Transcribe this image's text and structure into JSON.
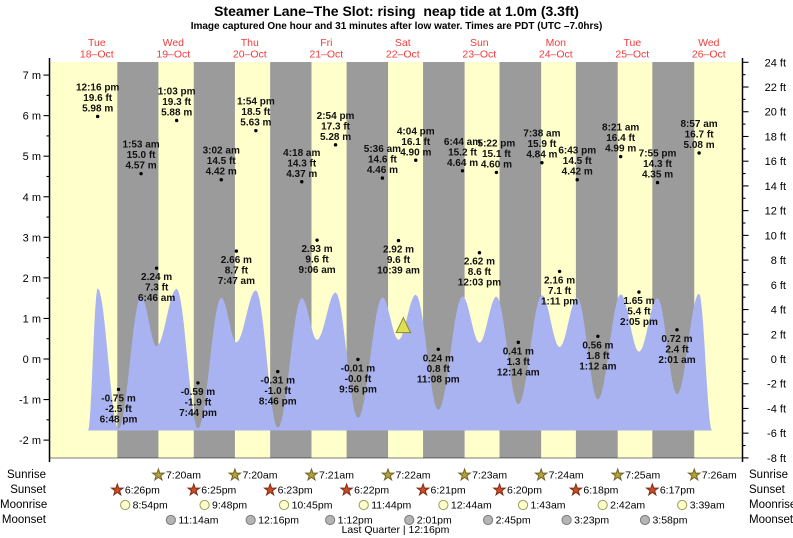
{
  "title": "Steamer Lane–The Slot: rising  neap tide at 1.0m (3.3ft)",
  "subtitle": "Image captured One hour and 31 minutes after low water. Times are PDT (UTC –7.0hrs)",
  "footer": "Last Quarter | 12:16pm",
  "side_labels": [
    "Sunrise",
    "Sunset",
    "Moonrise",
    "Moonset"
  ],
  "colors": {
    "day_band": "#ffffcc",
    "night_band": "#9b9b9b",
    "tide_fill": "#a9b3f1",
    "day_label_red": "#f23c3c",
    "axis_black": "#000000",
    "sunrise_star": "#b5a135",
    "sunrise_star_edge": "#6f652a",
    "sunset_star": "#cc4b28",
    "sunset_star_edge": "#7d2d12",
    "moonrise_circle": "#ffffd2",
    "moonrise_circle_edge": "#9d9d4e",
    "moonset_circle": "#b4b4b4",
    "moonset_circle_edge": "#7a7a7a",
    "marker_fill": "#dfdf55",
    "marker_edge": "#8b8b25"
  },
  "chart_data": {
    "type": "area",
    "title": "Steamer Lane–The Slot tide curve",
    "ylabel_left": "m",
    "ylabel_right": "ft",
    "y_left": {
      "unit": "m",
      "min": -2,
      "max": 7,
      "step": 1
    },
    "y_right": {
      "unit": "ft",
      "min": -8,
      "max": 24,
      "step": 2
    },
    "days": [
      {
        "name": "Tue",
        "date": "18–Oct"
      },
      {
        "name": "Wed",
        "date": "19–Oct"
      },
      {
        "name": "Thu",
        "date": "20–Oct"
      },
      {
        "name": "Fri",
        "date": "21–Oct"
      },
      {
        "name": "Sat",
        "date": "22–Oct"
      },
      {
        "name": "Sun",
        "date": "23–Oct"
      },
      {
        "name": "Mon",
        "date": "24–Oct"
      },
      {
        "name": "Tue",
        "date": "25–Oct"
      },
      {
        "name": "Wed",
        "date": "26–Oct"
      }
    ],
    "tide_events": [
      {
        "day": 0,
        "time": "12:16 pm",
        "ft": "19.6 ft",
        "m": "5.98 m",
        "type": "high"
      },
      {
        "day": 0,
        "time": "6:48 pm",
        "ft": "-2.5 ft",
        "m": "-0.75 m",
        "type": "low"
      },
      {
        "day": 1,
        "time": "1:53 am",
        "ft": "15.0 ft",
        "m": "4.57 m",
        "type": "high"
      },
      {
        "day": 1,
        "time": "6:46 am",
        "ft": "7.3 ft",
        "m": "2.24 m",
        "type": "low"
      },
      {
        "day": 1,
        "time": "1:03 pm",
        "ft": "19.3 ft",
        "m": "5.88 m",
        "type": "high"
      },
      {
        "day": 1,
        "time": "7:44 pm",
        "ft": "-1.9 ft",
        "m": "-0.59 m",
        "type": "low"
      },
      {
        "day": 2,
        "time": "3:02 am",
        "ft": "14.5 ft",
        "m": "4.42 m",
        "type": "high"
      },
      {
        "day": 2,
        "time": "7:47 am",
        "ft": "8.7 ft",
        "m": "2.66 m",
        "type": "low"
      },
      {
        "day": 2,
        "time": "1:54 pm",
        "ft": "18.5 ft",
        "m": "5.63 m",
        "type": "high"
      },
      {
        "day": 2,
        "time": "8:46 pm",
        "ft": "-1.0 ft",
        "m": "-0.31 m",
        "type": "low"
      },
      {
        "day": 3,
        "time": "4:18 am",
        "ft": "14.3 ft",
        "m": "4.37 m",
        "type": "high"
      },
      {
        "day": 3,
        "time": "9:06 am",
        "ft": "9.6 ft",
        "m": "2.93 m",
        "type": "low"
      },
      {
        "day": 3,
        "time": "2:54 pm",
        "ft": "17.3 ft",
        "m": "5.28 m",
        "type": "high"
      },
      {
        "day": 3,
        "time": "9:56 pm",
        "ft": "-0.0 ft",
        "m": "-0.01 m",
        "type": "low"
      },
      {
        "day": 4,
        "time": "5:36 am",
        "ft": "14.6 ft",
        "m": "4.46 m",
        "type": "high"
      },
      {
        "day": 4,
        "time": "10:39 am",
        "ft": "9.6 ft",
        "m": "2.92 m",
        "type": "low"
      },
      {
        "day": 4,
        "time": "4:04 pm",
        "ft": "16.1 ft",
        "m": "4.90 m",
        "type": "high"
      },
      {
        "day": 4,
        "time": "11:08 pm",
        "ft": "0.8 ft",
        "m": "0.24 m",
        "type": "low"
      },
      {
        "day": 5,
        "time": "6:44 am",
        "ft": "15.2 ft",
        "m": "4.64 m",
        "type": "high"
      },
      {
        "day": 5,
        "time": "12:03 pm",
        "ft": "8.6 ft",
        "m": "2.62 m",
        "type": "low"
      },
      {
        "day": 5,
        "time": "5:22 pm",
        "ft": "15.1 ft",
        "m": "4.60 m",
        "type": "high"
      },
      {
        "day": 6,
        "time": "12:14 am",
        "ft": "1.3 ft",
        "m": "0.41 m",
        "type": "low"
      },
      {
        "day": 6,
        "time": "7:38 am",
        "ft": "15.9 ft",
        "m": "4.84 m",
        "type": "high"
      },
      {
        "day": 6,
        "time": "1:11 pm",
        "ft": "7.1 ft",
        "m": "2.16 m",
        "type": "low"
      },
      {
        "day": 6,
        "time": "6:43 pm",
        "ft": "14.5 ft",
        "m": "4.42 m",
        "type": "high"
      },
      {
        "day": 7,
        "time": "1:12 am",
        "ft": "1.8 ft",
        "m": "0.56 m",
        "type": "low"
      },
      {
        "day": 7,
        "time": "8:21 am",
        "ft": "16.4 ft",
        "m": "4.99 m",
        "type": "high"
      },
      {
        "day": 7,
        "time": "2:05 pm",
        "ft": "5.4 ft",
        "m": "1.65 m",
        "type": "low"
      },
      {
        "day": 7,
        "time": "7:55 pm",
        "ft": "14.3 ft",
        "m": "4.35 m",
        "type": "high"
      },
      {
        "day": 8,
        "time": "2:01 am",
        "ft": "2.4 ft",
        "m": "0.72 m",
        "type": "low"
      },
      {
        "day": 8,
        "time": "8:57 am",
        "ft": "16.7 ft",
        "m": "5.08 m",
        "type": "high"
      }
    ],
    "sunrise": [
      {
        "day": 1,
        "time": "7:20am"
      },
      {
        "day": 2,
        "time": "7:20am"
      },
      {
        "day": 3,
        "time": "7:21am"
      },
      {
        "day": 4,
        "time": "7:22am"
      },
      {
        "day": 5,
        "time": "7:23am"
      },
      {
        "day": 6,
        "time": "7:24am"
      },
      {
        "day": 7,
        "time": "7:25am"
      },
      {
        "day": 8,
        "time": "7:26am"
      }
    ],
    "sunset": [
      {
        "day": 0,
        "time": "6:26pm"
      },
      {
        "day": 1,
        "time": "6:25pm"
      },
      {
        "day": 2,
        "time": "6:23pm"
      },
      {
        "day": 3,
        "time": "6:22pm"
      },
      {
        "day": 4,
        "time": "6:21pm"
      },
      {
        "day": 5,
        "time": "6:20pm"
      },
      {
        "day": 6,
        "time": "6:18pm"
      },
      {
        "day": 7,
        "time": "6:17pm"
      }
    ],
    "moonrise": [
      {
        "day": 0,
        "time": "8:54pm"
      },
      {
        "day": 1,
        "time": "9:48pm"
      },
      {
        "day": 2,
        "time": "10:45pm"
      },
      {
        "day": 3,
        "time": "11:44pm"
      },
      {
        "day": 5,
        "time": "12:44am"
      },
      {
        "day": 6,
        "time": "1:43am"
      },
      {
        "day": 7,
        "time": "2:42am"
      },
      {
        "day": 8,
        "time": "3:39am"
      }
    ],
    "moonset": [
      {
        "day": 1,
        "time": "11:14am"
      },
      {
        "day": 2,
        "time": "12:16pm"
      },
      {
        "day": 3,
        "time": "1:12pm"
      },
      {
        "day": 4,
        "time": "2:01pm"
      },
      {
        "day": 5,
        "time": "2:45pm"
      },
      {
        "day": 6,
        "time": "3:23pm"
      },
      {
        "day": 7,
        "time": "3:58pm"
      }
    ],
    "current_marker": {
      "day": 4,
      "time": "12:10 pm",
      "tide": "1.0m (3.3ft)",
      "state": "rising"
    }
  }
}
